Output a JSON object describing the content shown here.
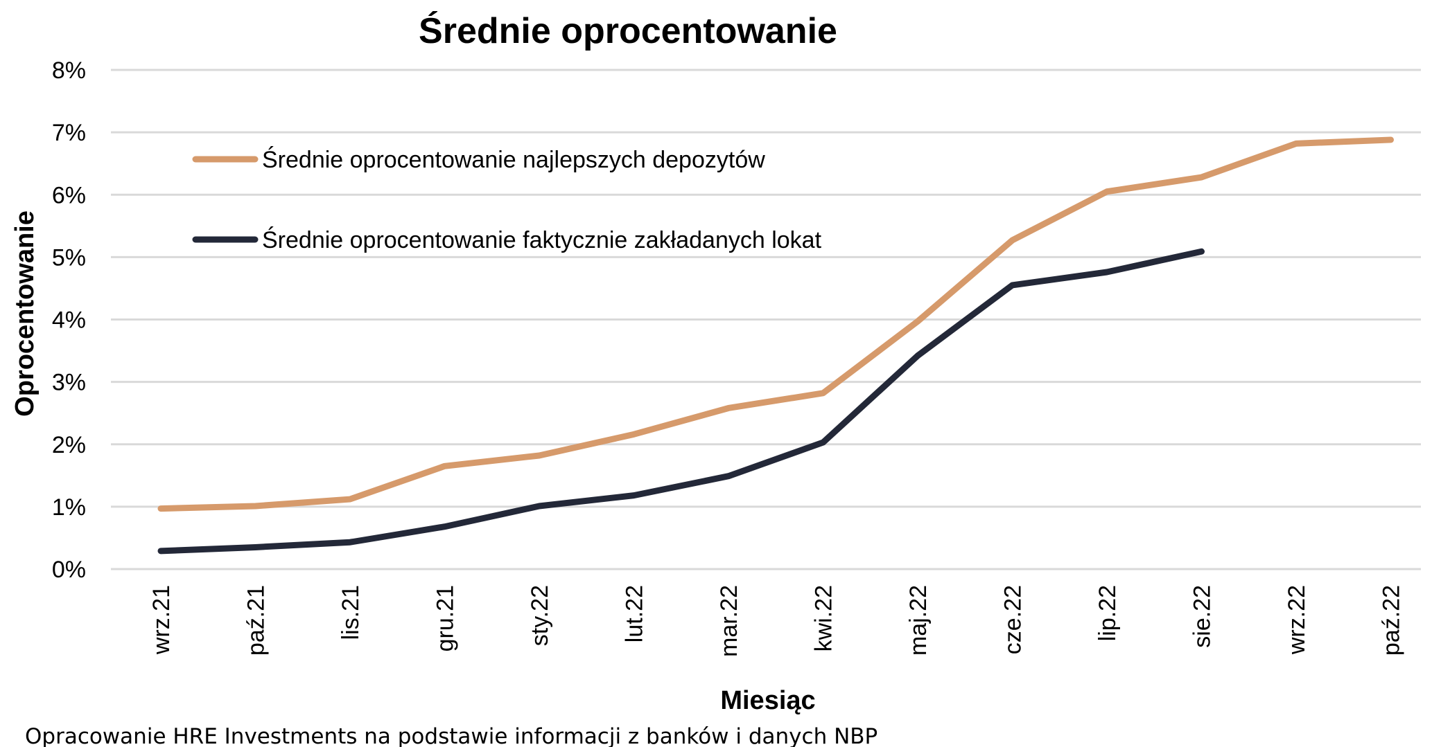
{
  "chart_data": {
    "type": "line",
    "title": "Średnie oprocentowanie",
    "xlabel": "Miesiąc",
    "ylabel": "Oprocentowanie",
    "ylim": [
      0,
      8
    ],
    "y_ticks": [
      "0%",
      "1%",
      "2%",
      "3%",
      "4%",
      "5%",
      "6%",
      "7%",
      "8%"
    ],
    "categories": [
      "wrz.21",
      "paź.21",
      "lis.21",
      "gru.21",
      "sty.22",
      "lut.22",
      "mar.22",
      "kwi.22",
      "maj.22",
      "cze.22",
      "lip.22",
      "sie.22",
      "wrz.22",
      "paź.22"
    ],
    "grid": true,
    "legend_position": "top-left",
    "series": [
      {
        "name": "Średnie oprocentowanie najlepszych depozytów",
        "color": "#d69a6b",
        "values": [
          0.97,
          1.01,
          1.12,
          1.65,
          1.82,
          2.16,
          2.58,
          2.82,
          3.97,
          5.27,
          6.05,
          6.28,
          6.82,
          6.88
        ]
      },
      {
        "name": "Średnie oprocentowanie faktycznie zakładanych lokat",
        "color": "#232838",
        "values": [
          0.29,
          0.35,
          0.43,
          0.68,
          1.01,
          1.18,
          1.49,
          2.03,
          3.42,
          4.55,
          4.76,
          5.09,
          null,
          null
        ]
      }
    ]
  },
  "source_note": "Opracowanie HRE Investments na podstawie informacji z banków i danych NBP"
}
